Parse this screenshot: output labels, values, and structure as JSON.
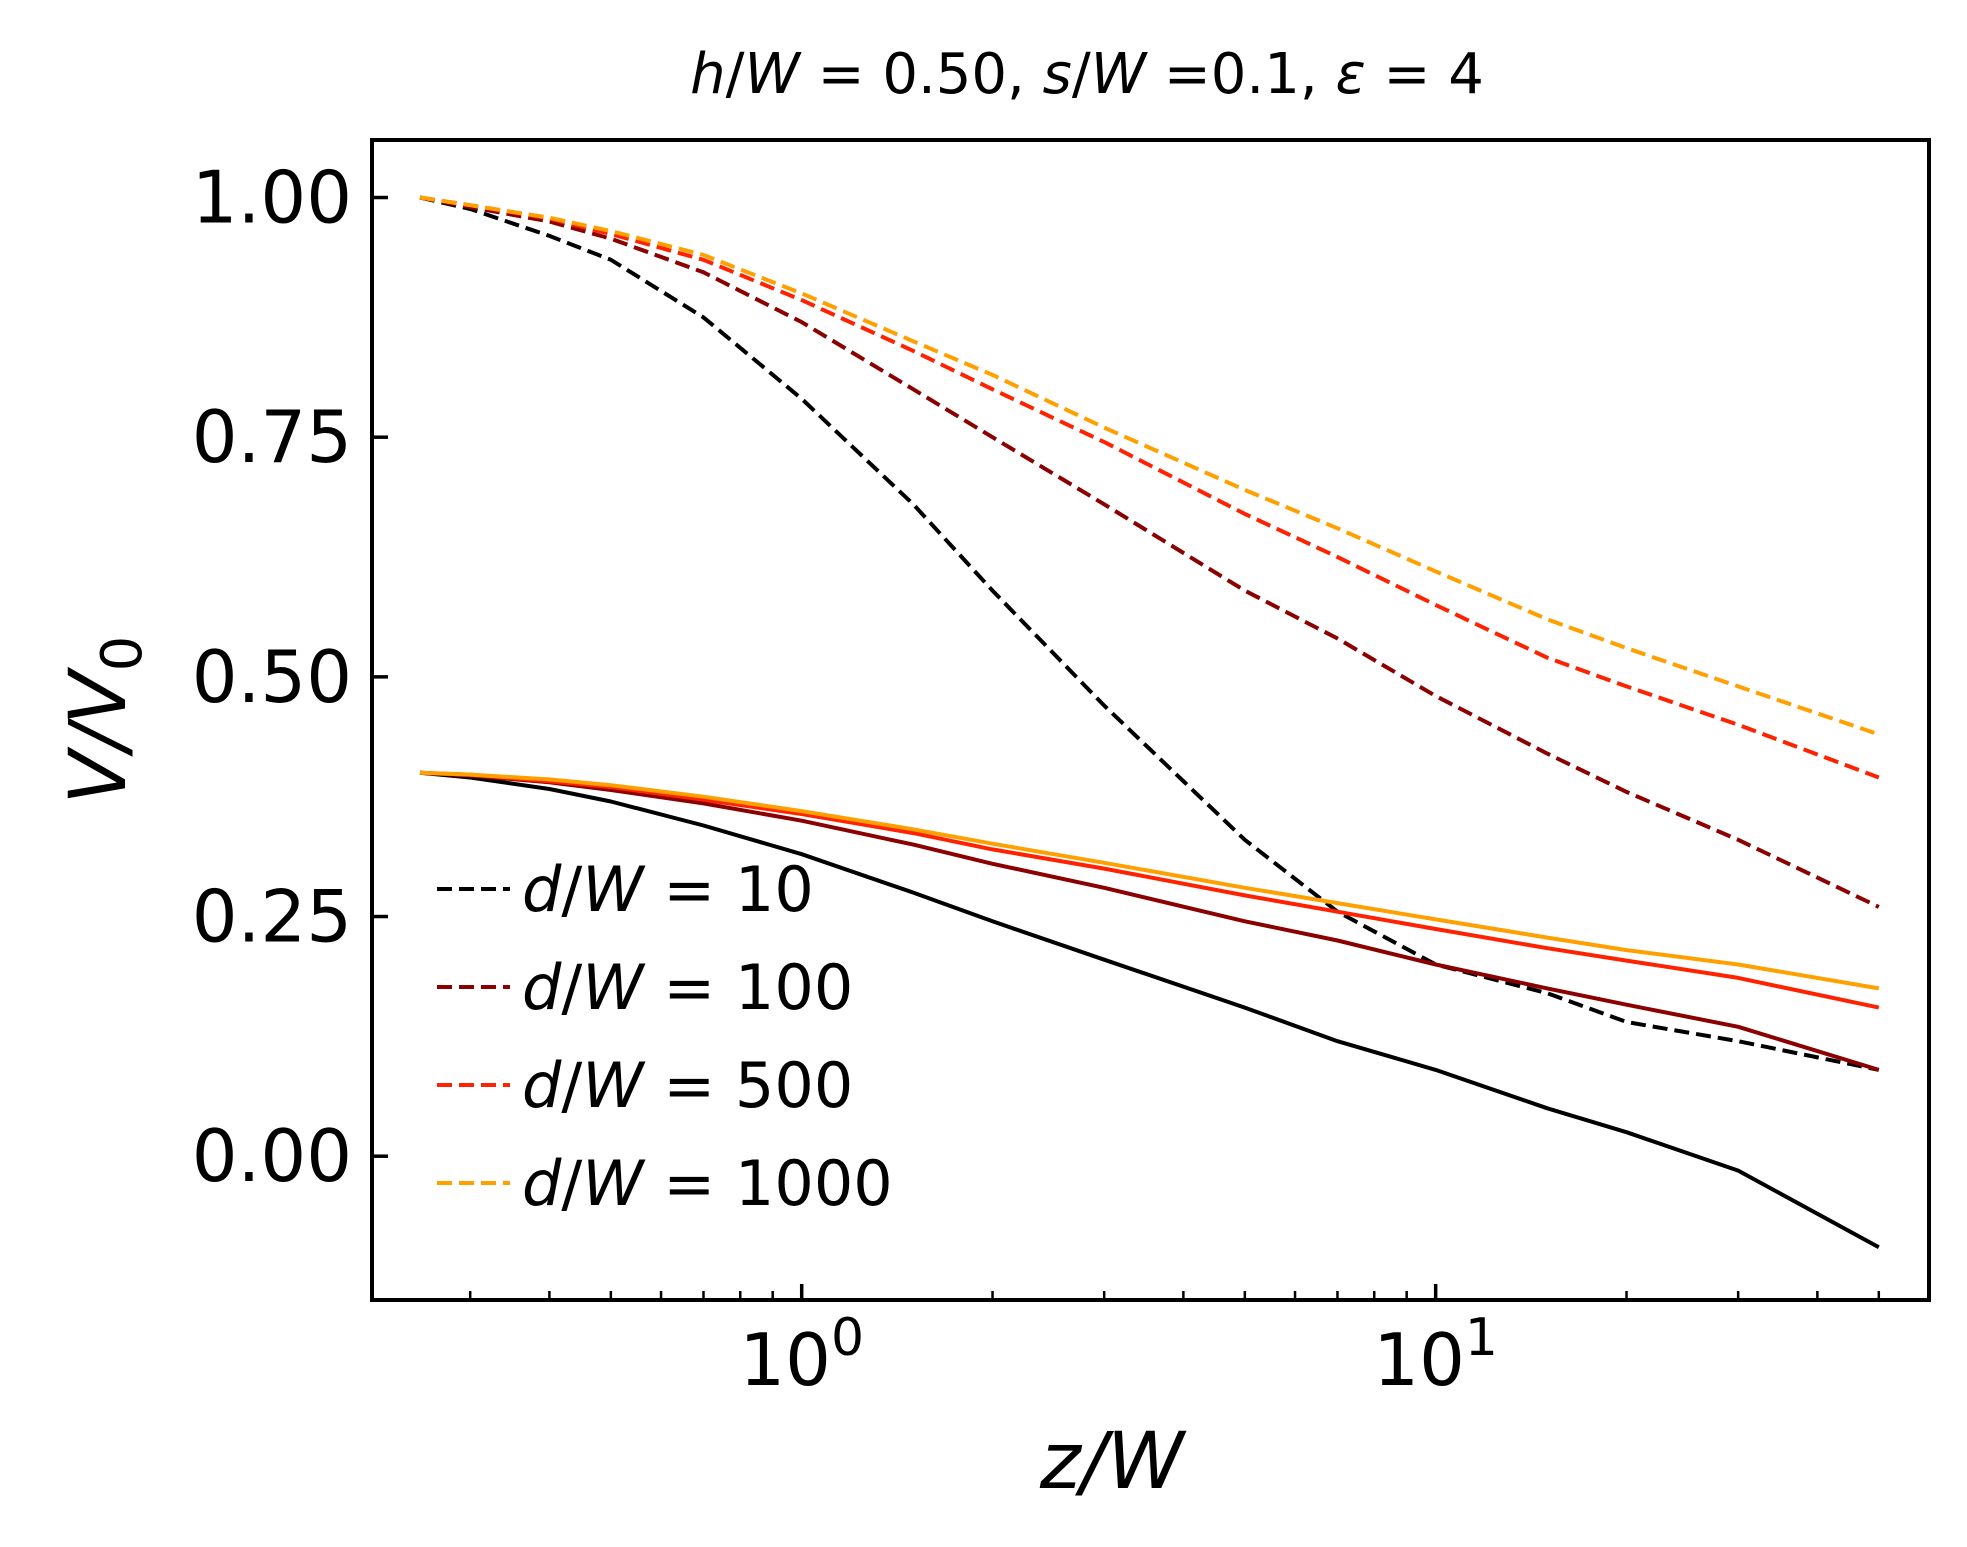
{
  "chart_data": {
    "type": "line",
    "title_parts": [
      {
        "text": "h",
        "italic": true
      },
      {
        "text": "/",
        "italic": false
      },
      {
        "text": "W",
        "italic": true
      },
      {
        "text": " = 0.50, ",
        "italic": false
      },
      {
        "text": "s",
        "italic": true
      },
      {
        "text": "/",
        "italic": false
      },
      {
        "text": "W",
        "italic": true
      },
      {
        "text": " =0.1, ",
        "italic": false
      },
      {
        "text": "ε",
        "italic": true
      },
      {
        "text": " = 4",
        "italic": false
      }
    ],
    "xlabel": "z/W",
    "ylabel": "V/V",
    "ylabel_sub": "0",
    "x_scale": "log",
    "xlim": [
      0.21,
      60
    ],
    "ylim": [
      -0.15,
      1.06
    ],
    "x_ticks": [
      {
        "value": 1,
        "base": "10",
        "exp": "0"
      },
      {
        "value": 10,
        "base": "10",
        "exp": "1"
      }
    ],
    "y_ticks": [
      {
        "value": 0.0,
        "label": "0.00"
      },
      {
        "value": 0.25,
        "label": "0.25"
      },
      {
        "value": 0.5,
        "label": "0.50"
      },
      {
        "value": 0.75,
        "label": "0.75"
      },
      {
        "value": 1.0,
        "label": "1.00"
      }
    ],
    "grid": false,
    "legend_position": "lower-left",
    "legend": [
      {
        "label": "d/W = 10",
        "color": "#000000",
        "style": "dashed"
      },
      {
        "label": "d/W = 100",
        "color": "#8b0000",
        "style": "dashed"
      },
      {
        "label": "d/W = 500",
        "color": "#ff2200",
        "style": "dashed"
      },
      {
        "label": "d/W = 1000",
        "color": "#ffa000",
        "style": "dashed"
      }
    ],
    "series": [
      {
        "name": "d/W = 10",
        "color": "#000000",
        "style": "dashed",
        "x": [
          0.25,
          0.3,
          0.4,
          0.5,
          0.7,
          1,
          1.5,
          2,
          3,
          5,
          7,
          10,
          15,
          20,
          30,
          50
        ],
        "y": [
          1.0,
          0.988,
          0.96,
          0.935,
          0.875,
          0.79,
          0.68,
          0.59,
          0.47,
          0.33,
          0.255,
          0.2,
          0.17,
          0.14,
          0.12,
          0.09
        ]
      },
      {
        "name": "d/W = 100",
        "color": "#8b0000",
        "style": "dashed",
        "x": [
          0.25,
          0.3,
          0.4,
          0.5,
          0.7,
          1,
          1.5,
          2,
          3,
          5,
          7,
          10,
          15,
          20,
          30,
          50
        ],
        "y": [
          1.0,
          0.99,
          0.975,
          0.957,
          0.922,
          0.87,
          0.8,
          0.75,
          0.68,
          0.59,
          0.54,
          0.48,
          0.42,
          0.38,
          0.33,
          0.26
        ]
      },
      {
        "name": "d/W = 500",
        "color": "#ff2200",
        "style": "dashed",
        "x": [
          0.25,
          0.3,
          0.4,
          0.5,
          0.7,
          1,
          1.5,
          2,
          3,
          5,
          7,
          10,
          15,
          20,
          30,
          50
        ],
        "y": [
          1.0,
          0.992,
          0.978,
          0.962,
          0.935,
          0.893,
          0.84,
          0.8,
          0.745,
          0.67,
          0.625,
          0.575,
          0.52,
          0.49,
          0.45,
          0.395
        ]
      },
      {
        "name": "d/W = 1000",
        "color": "#ffa000",
        "style": "dashed",
        "x": [
          0.25,
          0.3,
          0.4,
          0.5,
          0.7,
          1,
          1.5,
          2,
          3,
          5,
          7,
          10,
          15,
          20,
          30,
          50
        ],
        "y": [
          1.0,
          0.992,
          0.979,
          0.965,
          0.94,
          0.9,
          0.85,
          0.815,
          0.76,
          0.695,
          0.655,
          0.61,
          0.56,
          0.53,
          0.49,
          0.44
        ]
      },
      {
        "color": "#000000",
        "style": "solid",
        "x": [
          0.25,
          0.3,
          0.4,
          0.5,
          0.7,
          1,
          1.5,
          2,
          3,
          5,
          7,
          10,
          15,
          20,
          30,
          50
        ],
        "y": [
          0.4,
          0.395,
          0.383,
          0.37,
          0.345,
          0.315,
          0.275,
          0.245,
          0.205,
          0.155,
          0.12,
          0.09,
          0.05,
          0.025,
          -0.015,
          -0.095
        ]
      },
      {
        "color": "#8b0000",
        "style": "solid",
        "x": [
          0.25,
          0.3,
          0.4,
          0.5,
          0.7,
          1,
          1.5,
          2,
          3,
          5,
          7,
          10,
          15,
          20,
          30,
          50
        ],
        "y": [
          0.4,
          0.397,
          0.39,
          0.382,
          0.368,
          0.35,
          0.325,
          0.305,
          0.28,
          0.245,
          0.225,
          0.2,
          0.175,
          0.158,
          0.135,
          0.09
        ]
      },
      {
        "color": "#ff2200",
        "style": "solid",
        "x": [
          0.25,
          0.3,
          0.4,
          0.5,
          0.7,
          1,
          1.5,
          2,
          3,
          5,
          7,
          10,
          15,
          20,
          30,
          50
        ],
        "y": [
          0.4,
          0.398,
          0.391,
          0.385,
          0.372,
          0.357,
          0.337,
          0.32,
          0.3,
          0.272,
          0.255,
          0.237,
          0.217,
          0.204,
          0.186,
          0.155
        ]
      },
      {
        "color": "#ffa000",
        "style": "solid",
        "x": [
          0.25,
          0.3,
          0.4,
          0.5,
          0.7,
          1,
          1.5,
          2,
          3,
          5,
          7,
          10,
          15,
          20,
          30,
          50
        ],
        "y": [
          0.4,
          0.398,
          0.393,
          0.387,
          0.375,
          0.36,
          0.341,
          0.326,
          0.306,
          0.28,
          0.264,
          0.247,
          0.228,
          0.215,
          0.2,
          0.175
        ]
      }
    ]
  }
}
